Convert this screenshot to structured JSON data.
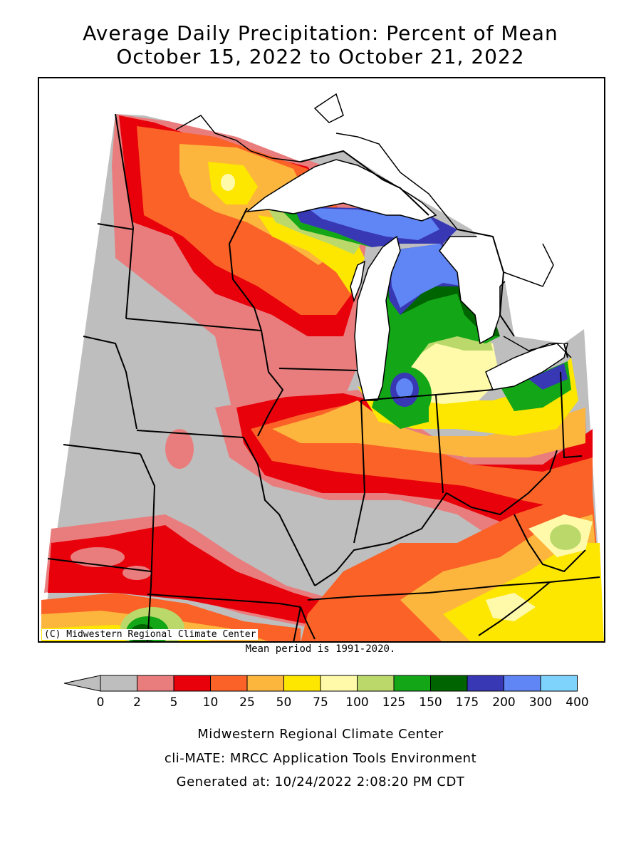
{
  "title": {
    "line1": "Average Daily Precipitation: Percent of Mean",
    "line2": "October 15, 2022 to October 21, 2022"
  },
  "map": {
    "credit": "(C) Midwestern Regional Climate Center",
    "mean_period": "Mean period is 1991-2020."
  },
  "legend": {
    "ticks": [
      "0",
      "2",
      "5",
      "10",
      "25",
      "50",
      "75",
      "100",
      "125",
      "150",
      "175",
      "200",
      "300",
      "400"
    ],
    "colors": [
      "#bebebe",
      "#e97d7d",
      "#e8000b",
      "#fb6227",
      "#fcb53d",
      "#fde600",
      "#fffaaa",
      "#bbd96a",
      "#13a718",
      "#006400",
      "#3838b4",
      "#6085f5",
      "#7ed3fd"
    ],
    "below_zero_color": "#bebebe"
  },
  "colors": {
    "gray": "#bebebe",
    "pink": "#e97d7d",
    "red": "#e8000b",
    "orange": "#fb6227",
    "lightorange": "#fcb53d",
    "yellow": "#fde600",
    "paleyellow": "#fffaaa",
    "lightgreen": "#bbd96a",
    "green": "#13a718",
    "darkgreen": "#006400",
    "navy": "#3838b4",
    "blue": "#6085f5",
    "lightblue": "#7ed3fd",
    "water": "#ffffff"
  },
  "footer": {
    "line1": "Midwestern Regional Climate Center",
    "line2": "cli-MATE: MRCC Application Tools Environment",
    "line3": "Generated at: 10/24/2022 2:08:20 PM CDT"
  }
}
